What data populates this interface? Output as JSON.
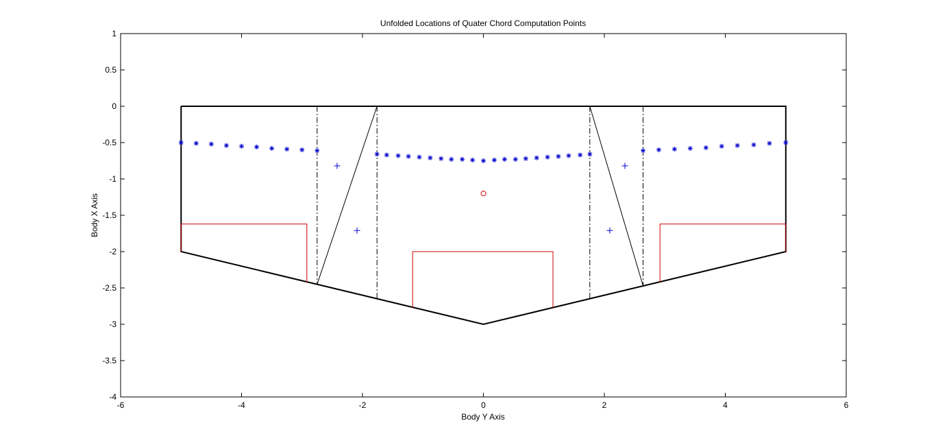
{
  "chart_data": {
    "type": "scatter",
    "title": "Unfolded Locations of Quater Chord Computation Points",
    "xlabel": "Body Y Axis",
    "ylabel": "Body X Axis",
    "xlim": [
      -6,
      6
    ],
    "ylim": [
      -4,
      1
    ],
    "xticks": [
      "-6",
      "-4",
      "-2",
      "0",
      "2",
      "4",
      "6"
    ],
    "yticks": [
      "1",
      "0.5",
      "0",
      "-0.5",
      "-1",
      "-1.5",
      "-2",
      "-2.5",
      "-3",
      "-3.5",
      "-4"
    ],
    "grid": false,
    "legend": "none",
    "series": [
      {
        "marker": "*",
        "color": "#0000cc",
        "points": [
          [
            -5.0,
            -0.5
          ],
          [
            -4.75,
            -0.51
          ],
          [
            -4.5,
            -0.52
          ],
          [
            -4.25,
            -0.54
          ],
          [
            -4.0,
            -0.55
          ],
          [
            -3.75,
            -0.56
          ],
          [
            -3.5,
            -0.58
          ],
          [
            -3.25,
            -0.59
          ],
          [
            -3.0,
            -0.6
          ],
          [
            -2.75,
            -0.61
          ],
          [
            -1.76,
            -0.66
          ],
          [
            -1.6,
            -0.67
          ],
          [
            -1.41,
            -0.68
          ],
          [
            -1.24,
            -0.69
          ],
          [
            -1.06,
            -0.7
          ],
          [
            -0.88,
            -0.71
          ],
          [
            -0.7,
            -0.72
          ],
          [
            -0.53,
            -0.73
          ],
          [
            -0.35,
            -0.73
          ],
          [
            -0.18,
            -0.74
          ],
          [
            0.0,
            -0.75
          ],
          [
            0.18,
            -0.74
          ],
          [
            0.35,
            -0.73
          ],
          [
            0.53,
            -0.73
          ],
          [
            0.7,
            -0.72
          ],
          [
            0.88,
            -0.71
          ],
          [
            1.06,
            -0.7
          ],
          [
            1.24,
            -0.69
          ],
          [
            1.41,
            -0.68
          ],
          [
            1.6,
            -0.67
          ],
          [
            1.76,
            -0.66
          ],
          [
            2.64,
            -0.61
          ],
          [
            2.9,
            -0.6
          ],
          [
            3.16,
            -0.59
          ],
          [
            3.42,
            -0.58
          ],
          [
            3.68,
            -0.57
          ],
          [
            3.94,
            -0.55
          ],
          [
            4.2,
            -0.54
          ],
          [
            4.47,
            -0.53
          ],
          [
            4.73,
            -0.51
          ],
          [
            5.0,
            -0.5
          ]
        ]
      },
      {
        "marker": "+",
        "color": "#0000cc",
        "points": [
          [
            -2.42,
            -0.82
          ],
          [
            -2.09,
            -1.71
          ],
          [
            2.09,
            -1.71
          ],
          [
            2.34,
            -0.82
          ]
        ]
      },
      {
        "marker": "o",
        "color": "#cc0000",
        "points": [
          [
            0.0,
            -1.2
          ]
        ]
      }
    ],
    "lines": [
      {
        "style": "solid-thick",
        "color": "#000000",
        "points": [
          [
            -5,
            0
          ],
          [
            5,
            0
          ],
          [
            5,
            -2
          ],
          [
            0,
            -3
          ],
          [
            -5,
            -2
          ],
          [
            -5,
            0
          ]
        ]
      },
      {
        "style": "solid",
        "color": "#000000",
        "points": [
          [
            -2.75,
            -2.45
          ],
          [
            -1.76,
            0
          ]
        ]
      },
      {
        "style": "solid",
        "color": "#000000",
        "points": [
          [
            1.76,
            0
          ],
          [
            2.64,
            -2.47
          ]
        ]
      },
      {
        "style": "dashdot",
        "color": "#000000",
        "points": [
          [
            -2.75,
            0
          ],
          [
            -2.75,
            -2.45
          ]
        ]
      },
      {
        "style": "dashdot",
        "color": "#000000",
        "points": [
          [
            -1.76,
            0
          ],
          [
            -1.76,
            -2.65
          ]
        ]
      },
      {
        "style": "dashdot",
        "color": "#000000",
        "points": [
          [
            1.76,
            0
          ],
          [
            1.76,
            -2.65
          ]
        ]
      },
      {
        "style": "dashdot",
        "color": "#000000",
        "points": [
          [
            2.64,
            0
          ],
          [
            2.64,
            -2.47
          ]
        ]
      },
      {
        "style": "solid",
        "color": "#cc0000",
        "points": [
          [
            -5,
            -2
          ],
          [
            -5,
            -1.62
          ],
          [
            -2.92,
            -1.62
          ],
          [
            -2.92,
            -2.42
          ]
        ]
      },
      {
        "style": "solid",
        "color": "#cc0000",
        "points": [
          [
            -1.17,
            -2.77
          ],
          [
            -1.17,
            -2.0
          ],
          [
            1.15,
            -2.0
          ],
          [
            1.15,
            -2.77
          ]
        ]
      },
      {
        "style": "solid",
        "color": "#cc0000",
        "points": [
          [
            2.92,
            -2.42
          ],
          [
            2.92,
            -1.62
          ],
          [
            5,
            -1.62
          ],
          [
            5,
            -2
          ]
        ]
      }
    ]
  }
}
